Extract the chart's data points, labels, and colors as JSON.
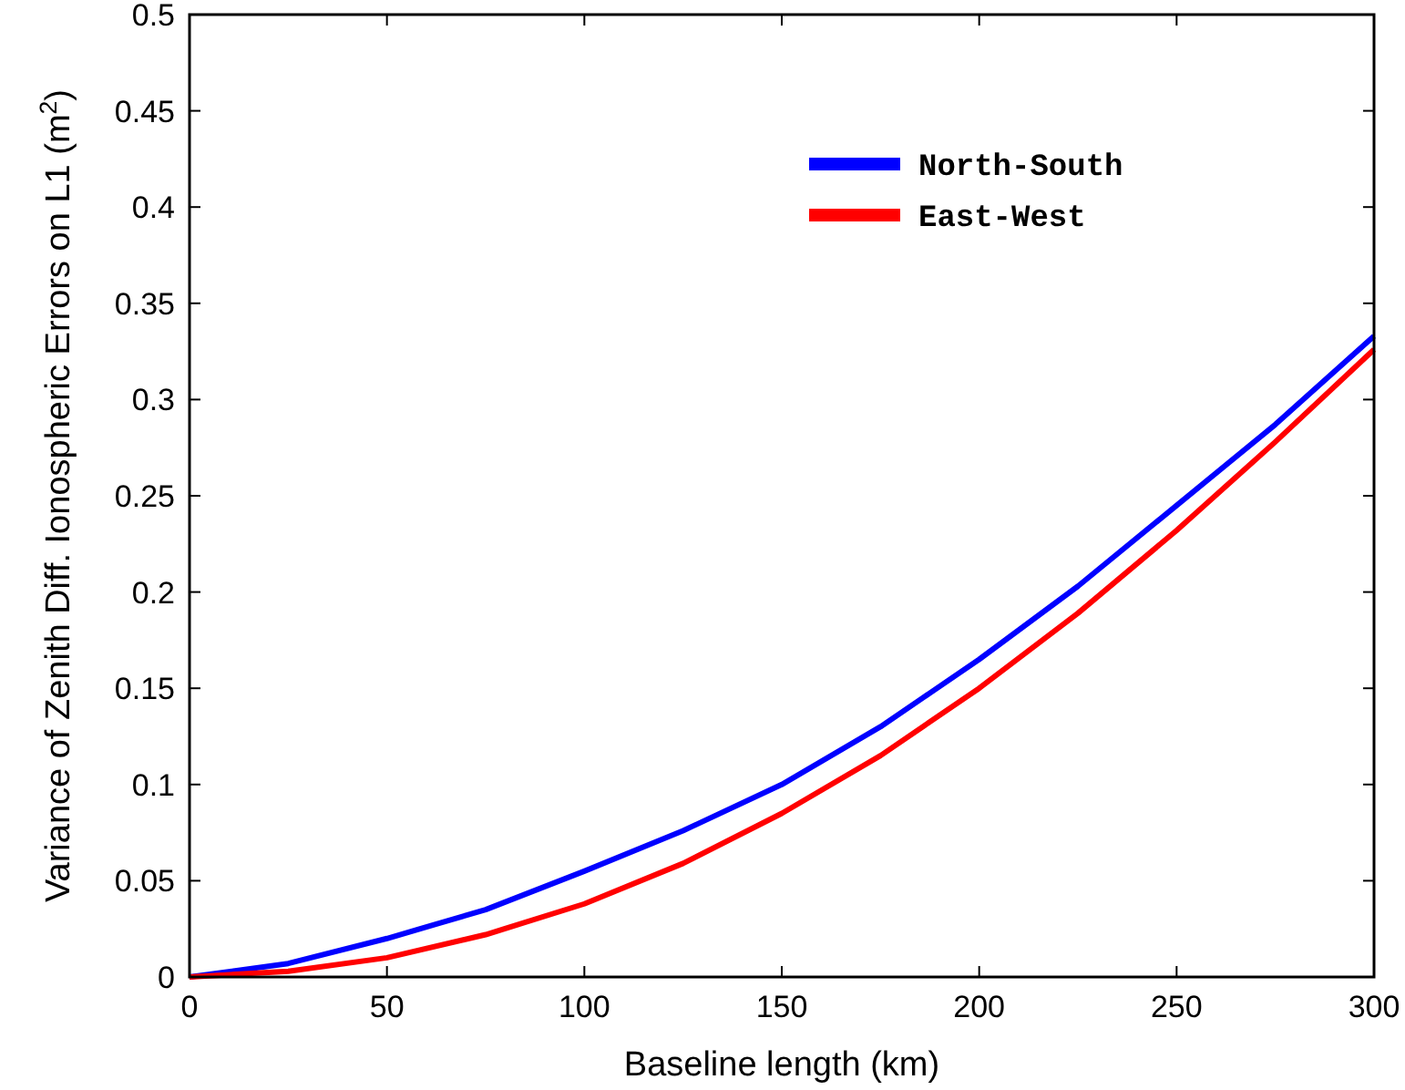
{
  "chart_data": {
    "type": "line",
    "xlabel": "Baseline length (km)",
    "ylabel": "Variance of Zenith Diff. Ionospheric Errors on L1 (m$^{2}$)",
    "x": [
      0,
      25,
      50,
      75,
      100,
      125,
      150,
      175,
      200,
      225,
      250,
      275,
      300
    ],
    "series": [
      {
        "name": "North-South",
        "color": "#0000ff",
        "values": [
          0,
          0.007,
          0.02,
          0.035,
          0.055,
          0.076,
          0.1,
          0.13,
          0.165,
          0.203,
          0.245,
          0.287,
          0.333
        ]
      },
      {
        "name": "East-West",
        "color": "#ff0000",
        "values": [
          0,
          0.003,
          0.01,
          0.022,
          0.038,
          0.059,
          0.085,
          0.115,
          0.15,
          0.189,
          0.232,
          0.278,
          0.326
        ]
      }
    ],
    "xlim": [
      0,
      300
    ],
    "xticks": [
      0,
      50,
      100,
      150,
      200,
      250,
      300
    ],
    "ylim": [
      0,
      0.5
    ],
    "yticks": [
      0,
      0.05,
      0.1,
      0.15,
      0.2,
      0.25,
      0.3,
      0.35,
      0.4,
      0.45,
      0.5
    ],
    "grid": false,
    "legend": "top right",
    "line_style": "solid",
    "marker": "none"
  }
}
